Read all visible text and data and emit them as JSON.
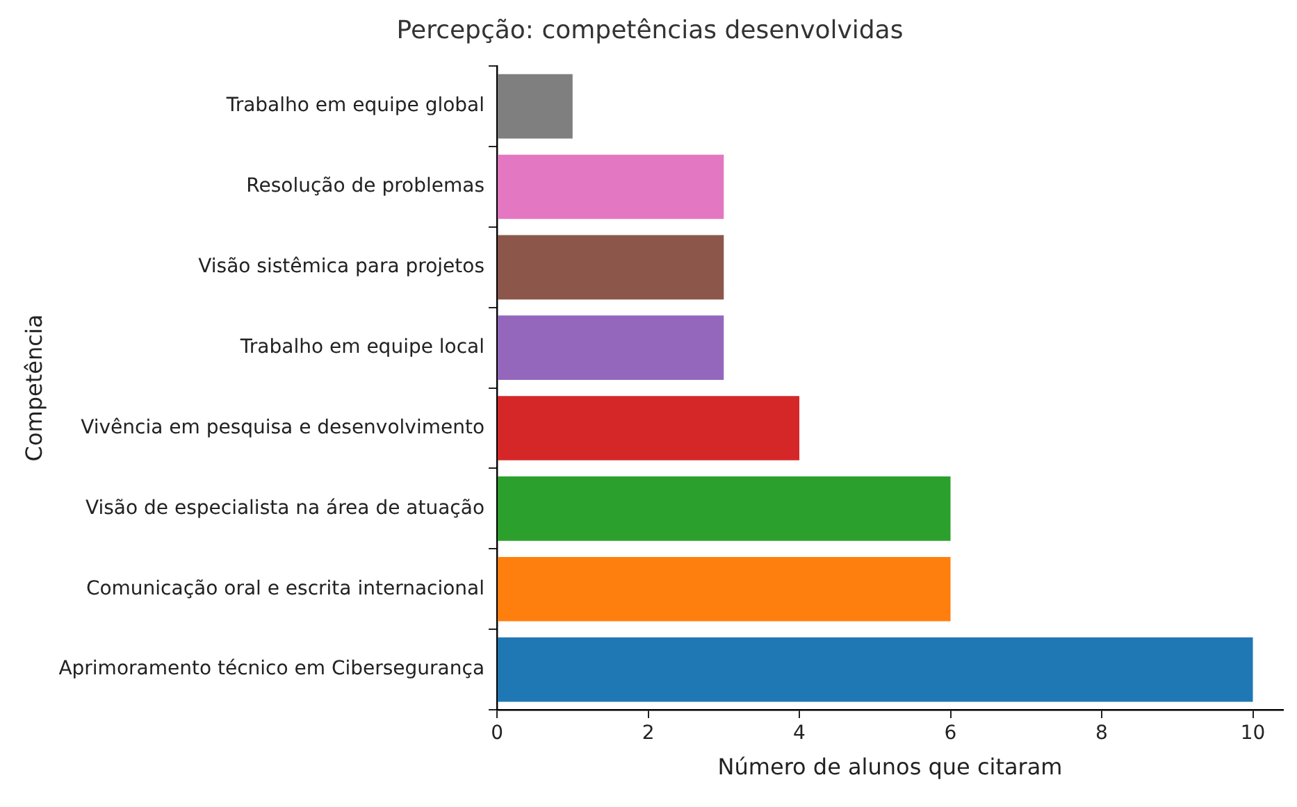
{
  "chart_data": {
    "type": "bar",
    "orientation": "horizontal",
    "title": "Percepção: competências desenvolvidas",
    "xlabel": "Número de alunos que citaram",
    "ylabel": "Competência",
    "categories": [
      "Trabalho em equipe global",
      "Resolução de problemas",
      "Visão sistêmica para projetos",
      "Trabalho em equipe local",
      "Vivência em pesquisa e desenvolvimento",
      "Visão de especialista na área de atuação",
      "Comunicação oral e escrita internacional",
      "Aprimoramento técnico em Cibersegurança"
    ],
    "values": [
      1,
      3,
      3,
      3,
      4,
      6,
      6,
      10
    ],
    "colors": [
      "#7f7f7f",
      "#e377c2",
      "#8c564b",
      "#9467bd",
      "#d62728",
      "#2ca02c",
      "#ff7f0e",
      "#1f77b4"
    ],
    "xlim": [
      0,
      10.4
    ],
    "xticks": [
      0,
      2,
      4,
      6,
      8,
      10
    ],
    "grid": false,
    "legend": false
  }
}
